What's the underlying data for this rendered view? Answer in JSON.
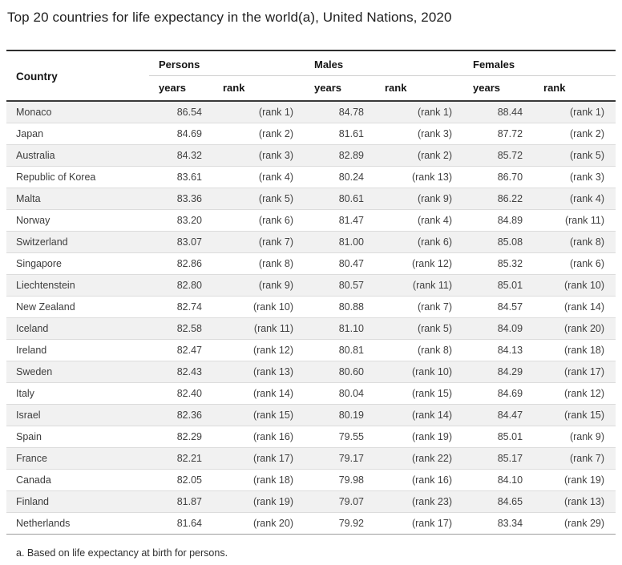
{
  "title": "Top 20 countries for life expectancy in the world(a), United Nations, 2020",
  "footnote": "a. Based on life expectancy at birth for persons.",
  "table": {
    "country_header": "Country",
    "groups": {
      "persons": "Persons",
      "males": "Males",
      "females": "Females"
    },
    "subheaders": {
      "years": "years",
      "rank": "rank"
    }
  },
  "colors": {
    "header_rule_dark": "#2e2e2e",
    "header_rule_light": "#cfcfcf",
    "row_alt_background": "#f1f1f1",
    "row_divider": "#dcdcdc",
    "table_end_rule": "#9c9c9c",
    "body_text": "#414141",
    "header_text": "#141414"
  },
  "chart_data": {
    "type": "table",
    "title": "Top 20 countries for life expectancy in the world(a), United Nations, 2020",
    "columns": [
      "Country",
      "Persons years",
      "Persons rank",
      "Males years",
      "Males rank",
      "Females years",
      "Females rank"
    ],
    "rows": [
      [
        "Monaco",
        "86.54",
        "(rank 1)",
        "84.78",
        "(rank 1)",
        "88.44",
        "(rank 1)"
      ],
      [
        "Japan",
        "84.69",
        "(rank 2)",
        "81.61",
        "(rank 3)",
        "87.72",
        "(rank 2)"
      ],
      [
        "Australia",
        "84.32",
        "(rank 3)",
        "82.89",
        "(rank 2)",
        "85.72",
        "(rank 5)"
      ],
      [
        "Republic of Korea",
        "83.61",
        "(rank 4)",
        "80.24",
        "(rank 13)",
        "86.70",
        "(rank 3)"
      ],
      [
        "Malta",
        "83.36",
        "(rank 5)",
        "80.61",
        "(rank 9)",
        "86.22",
        "(rank 4)"
      ],
      [
        "Norway",
        "83.20",
        "(rank 6)",
        "81.47",
        "(rank 4)",
        "84.89",
        "(rank 11)"
      ],
      [
        "Switzerland",
        "83.07",
        "(rank 7)",
        "81.00",
        "(rank 6)",
        "85.08",
        "(rank 8)"
      ],
      [
        "Singapore",
        "82.86",
        "(rank 8)",
        "80.47",
        "(rank 12)",
        "85.32",
        "(rank 6)"
      ],
      [
        "Liechtenstein",
        "82.80",
        "(rank 9)",
        "80.57",
        "(rank 11)",
        "85.01",
        "(rank 10)"
      ],
      [
        "New Zealand",
        "82.74",
        "(rank 10)",
        "80.88",
        "(rank 7)",
        "84.57",
        "(rank 14)"
      ],
      [
        "Iceland",
        "82.58",
        "(rank 11)",
        "81.10",
        "(rank 5)",
        "84.09",
        "(rank 20)"
      ],
      [
        "Ireland",
        "82.47",
        "(rank 12)",
        "80.81",
        "(rank 8)",
        "84.13",
        "(rank 18)"
      ],
      [
        "Sweden",
        "82.43",
        "(rank 13)",
        "80.60",
        "(rank 10)",
        "84.29",
        "(rank 17)"
      ],
      [
        "Italy",
        "82.40",
        "(rank 14)",
        "80.04",
        "(rank 15)",
        "84.69",
        "(rank 12)"
      ],
      [
        "Israel",
        "82.36",
        "(rank 15)",
        "80.19",
        "(rank 14)",
        "84.47",
        "(rank 15)"
      ],
      [
        "Spain",
        "82.29",
        "(rank 16)",
        "79.55",
        "(rank 19)",
        "85.01",
        "(rank 9)"
      ],
      [
        "France",
        "82.21",
        "(rank 17)",
        "79.17",
        "(rank 22)",
        "85.17",
        "(rank 7)"
      ],
      [
        "Canada",
        "82.05",
        "(rank 18)",
        "79.98",
        "(rank 16)",
        "84.10",
        "(rank 19)"
      ],
      [
        "Finland",
        "81.87",
        "(rank 19)",
        "79.07",
        "(rank 23)",
        "84.65",
        "(rank 13)"
      ],
      [
        "Netherlands",
        "81.64",
        "(rank 20)",
        "79.92",
        "(rank 17)",
        "83.34",
        "(rank 29)"
      ]
    ],
    "footnote": "a. Based on life expectancy at birth for persons."
  }
}
